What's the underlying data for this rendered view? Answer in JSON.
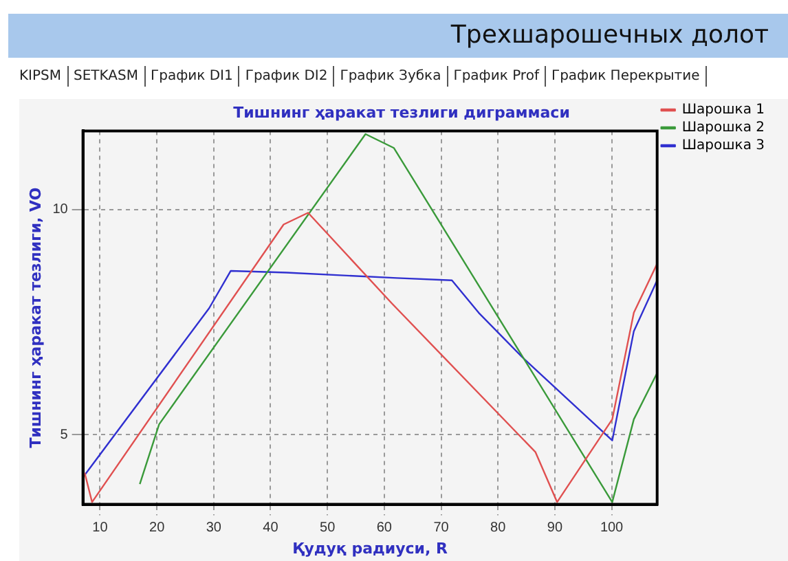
{
  "chart_data": {
    "type": "line",
    "title": "Тишнинг ҳаракат тезлиги диграммаси",
    "xlabel": "Қудуқ радиуси, R",
    "ylabel": "Тишнинг ҳаракат тезлиги, VO",
    "annotations": [
      "Трехшарошечных долот",
      "KIPSM",
      "SETKASM",
      "График DI1",
      "График DI2",
      "График Зубка",
      "График Prof",
      "График Перекрытие"
    ],
    "series": [
      {
        "name": "Шарошка 1",
        "color": "#e05050",
        "x": [
          7.3,
          8.6,
          42.3,
          46.6,
          61.3,
          86.6,
          90.4,
          100.1,
          103.9,
          108
        ],
        "values": [
          4.15,
          3.5,
          9.67,
          9.93,
          7.92,
          4.61,
          3.5,
          5.34,
          7.71,
          8.8
        ]
      },
      {
        "name": "Шарошка 2",
        "color": "#3a9a3a",
        "x": [
          17,
          20.4,
          56.7,
          61.7,
          100.1,
          103.9,
          108
        ],
        "values": [
          3.9,
          5.23,
          11.68,
          11.37,
          3.5,
          5.34,
          6.37
        ]
      },
      {
        "name": "Шарошка 3",
        "color": "#3030d0",
        "x": [
          7.3,
          29.2,
          33,
          42.8,
          62.2,
          71.9,
          76.6,
          84.2,
          100.1,
          103.9,
          108
        ],
        "values": [
          4.1,
          7.81,
          8.64,
          8.6,
          8.48,
          8.43,
          7.71,
          6.73,
          4.87,
          7.3,
          8.43
        ]
      }
    ],
    "xlim": [
      7,
      108
    ],
    "ylim": [
      3.45,
      11.75
    ],
    "xticks": [
      10,
      20,
      30,
      40,
      50,
      60,
      70,
      80,
      90,
      100
    ],
    "yticks": [
      5,
      10
    ],
    "grid": true,
    "legend": "top right",
    "marker": "none",
    "line_style": "solid"
  }
}
